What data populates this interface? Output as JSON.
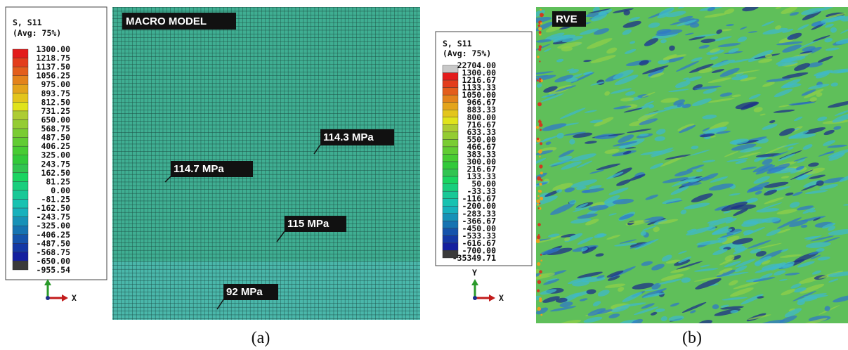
{
  "panels": [
    {
      "legend": {
        "title": "S, S11",
        "subtitle": "(Avg: 75%)",
        "levels": [
          "1300.00",
          "1218.75",
          "1137.50",
          "1056.25",
          "975.00",
          "893.75",
          "812.50",
          "731.25",
          "650.00",
          "568.75",
          "487.50",
          "406.25",
          "325.00",
          "243.75",
          "162.50",
          "81.25",
          "0.00",
          "-81.25",
          "-162.50",
          "-243.75",
          "-325.00",
          "-406.25",
          "-487.50",
          "-568.75",
          "-650.00",
          "-955.54"
        ]
      },
      "triad": {
        "x": "X"
      },
      "image_label": "MACRO MODEL",
      "annotations": [
        "114.3 MPa",
        "114.7 MPa",
        "115 MPa",
        "92 MPa"
      ],
      "caption": "(a)"
    },
    {
      "legend": {
        "title": "S, S11",
        "subtitle": "(Avg: 75%)",
        "levels": [
          "22704.00",
          "1300.00",
          "1216.67",
          "1133.33",
          "1050.00",
          "966.67",
          "883.33",
          "800.00",
          "716.67",
          "633.33",
          "550.00",
          "466.67",
          "383.33",
          "300.00",
          "216.67",
          "133.33",
          "50.00",
          "-33.33",
          "-116.67",
          "-200.00",
          "-283.33",
          "-366.67",
          "-450.00",
          "-533.33",
          "-616.67",
          "-700.00",
          "-35349.71"
        ]
      },
      "triad": {
        "y": "Y",
        "x": "X"
      },
      "image_label": "RVE",
      "caption": "(b)"
    }
  ]
}
